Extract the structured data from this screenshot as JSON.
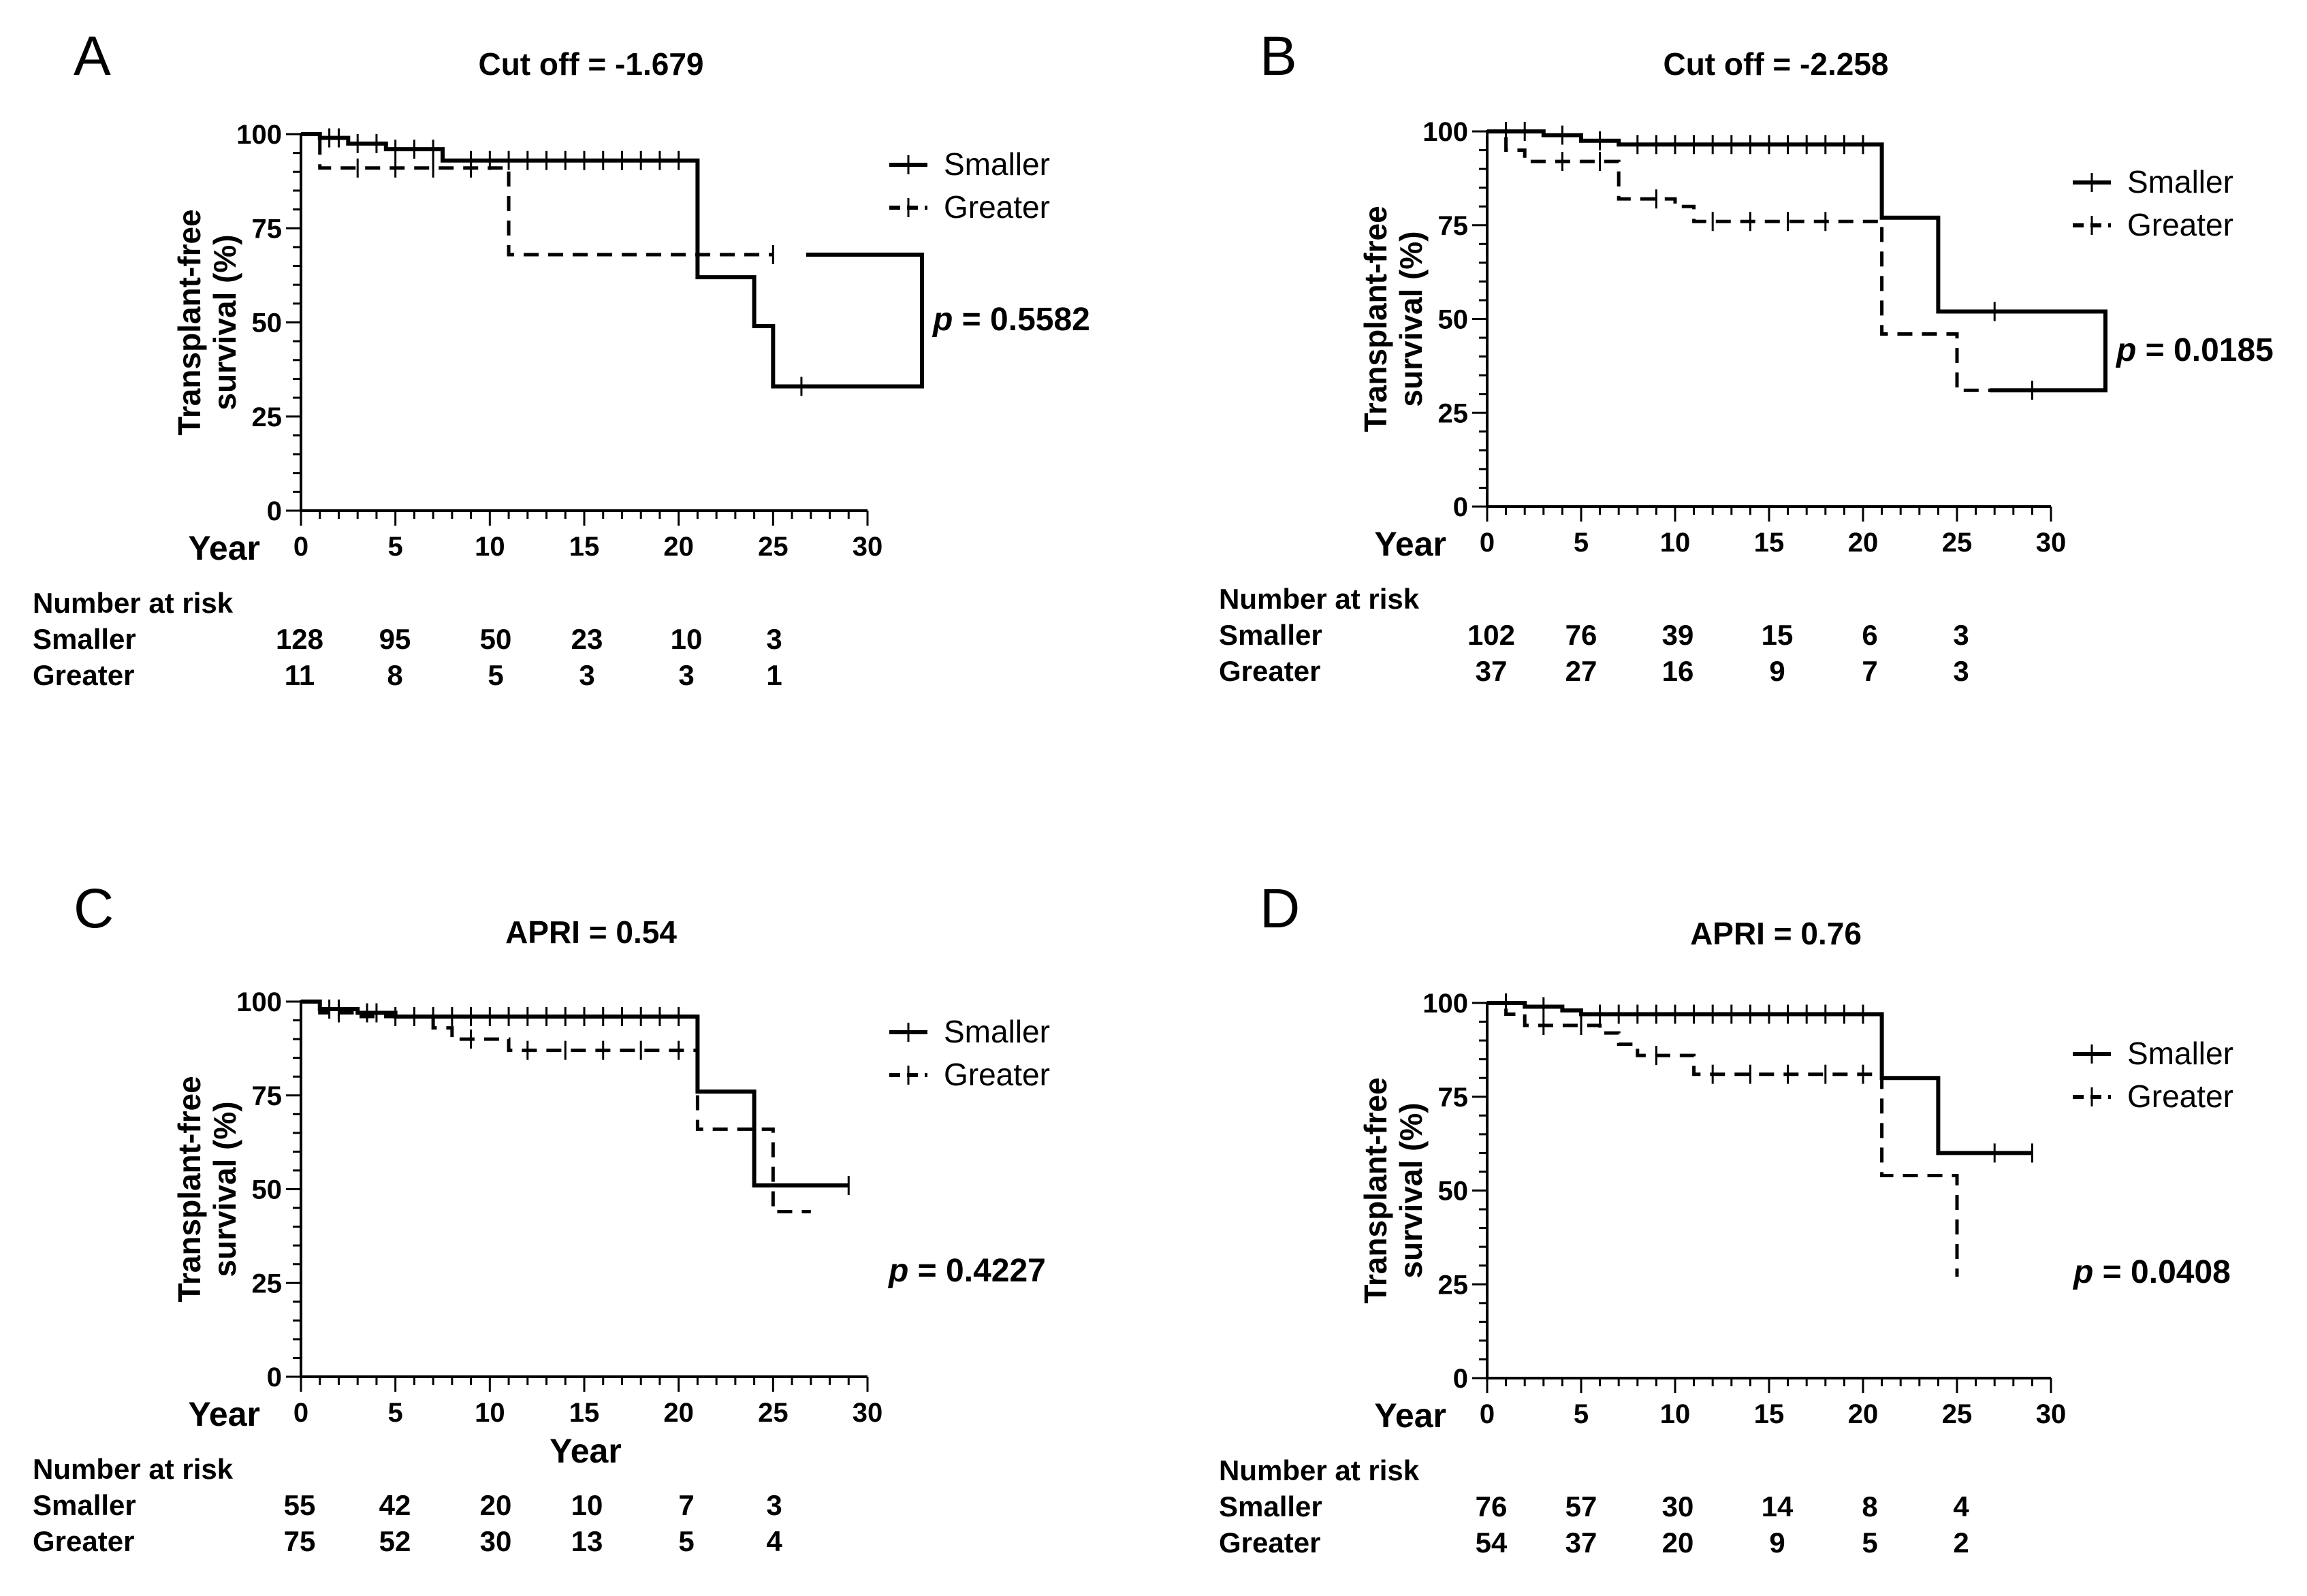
{
  "chart_data": [
    {
      "type": "line",
      "panel": "A",
      "title": "Cut off = -1.679",
      "xlabel": "Year",
      "ylabel": "Transplant-free survival (%)",
      "ylabel_lines": [
        "Transplant-free",
        "survival (%)"
      ],
      "xlim": [
        0,
        30
      ],
      "ylim": [
        0,
        100
      ],
      "xticks": [
        0,
        5,
        10,
        15,
        20,
        25,
        30
      ],
      "yticks": [
        0,
        25,
        50,
        75,
        100
      ],
      "p_prefix": "p",
      "p_value": " = 0.5582",
      "series": [
        {
          "name": "Smaller",
          "style": "solid",
          "steps": [
            [
              0,
              100
            ],
            [
              1,
              99
            ],
            [
              2.5,
              97.5
            ],
            [
              4.5,
              96
            ],
            [
              7.5,
              93
            ],
            [
              21,
              62
            ],
            [
              24,
              49
            ],
            [
              25,
              33
            ],
            [
              29,
              33
            ]
          ],
          "censors": [
            1.5,
            2,
            3,
            4,
            5,
            6,
            7,
            9,
            10,
            11,
            12,
            13,
            14,
            15,
            16,
            17,
            18,
            19,
            20,
            26.5
          ]
        },
        {
          "name": "Greater",
          "style": "dashed",
          "steps": [
            [
              0,
              100
            ],
            [
              1,
              91
            ],
            [
              11,
              68
            ],
            [
              25,
              68
            ]
          ],
          "censors": [
            3,
            5,
            7,
            9,
            25
          ]
        }
      ],
      "risk_table": {
        "header": "Number at risk",
        "times": [
          0,
          5,
          10,
          15,
          20,
          25
        ],
        "rows": [
          {
            "label": "Smaller",
            "values": [
              "128",
              "95",
              "50",
              "23",
              "10",
              "3"
            ]
          },
          {
            "label": "Greater",
            "values": [
              "11",
              "8",
              "5",
              "3",
              "3",
              "1"
            ]
          }
        ]
      }
    },
    {
      "type": "line",
      "panel": "B",
      "title": "Cut off = -2.258",
      "xlabel": "Year",
      "ylabel": "Transplant-free survival (%)",
      "ylabel_lines": [
        "Transplant-free",
        "survival (%)"
      ],
      "xlim": [
        0,
        30
      ],
      "ylim": [
        0,
        100
      ],
      "xticks": [
        0,
        5,
        10,
        15,
        20,
        25,
        30
      ],
      "yticks": [
        0,
        25,
        50,
        75,
        100
      ],
      "p_prefix": "p",
      "p_value": " = 0.0185",
      "series": [
        {
          "name": "Smaller",
          "style": "solid",
          "steps": [
            [
              0,
              100
            ],
            [
              3,
              99
            ],
            [
              5,
              97.5
            ],
            [
              7,
              96.5
            ],
            [
              21,
              77
            ],
            [
              24,
              52
            ],
            [
              27,
              52
            ]
          ],
          "censors": [
            1,
            2,
            4,
            6,
            8,
            9,
            10,
            11,
            12,
            13,
            14,
            15,
            16,
            17,
            18,
            19,
            20,
            27
          ]
        },
        {
          "name": "Greater",
          "style": "dashed",
          "steps": [
            [
              0,
              100
            ],
            [
              1,
              95
            ],
            [
              2,
              92
            ],
            [
              7,
              82
            ],
            [
              10,
              80
            ],
            [
              11,
              76
            ],
            [
              21,
              46
            ],
            [
              24,
              46
            ],
            [
              25,
              31
            ],
            [
              29,
              31
            ]
          ],
          "censors": [
            4,
            6,
            9,
            12,
            14,
            16,
            18,
            29
          ]
        }
      ],
      "risk_table": {
        "header": "Number at risk",
        "times": [
          0,
          5,
          10,
          15,
          20,
          25
        ],
        "rows": [
          {
            "label": "Smaller",
            "values": [
              "102",
              "76",
              "39",
              "15",
              "6",
              "3"
            ]
          },
          {
            "label": "Greater",
            "values": [
              "37",
              "27",
              "16",
              "9",
              "7",
              "3"
            ]
          }
        ]
      }
    },
    {
      "type": "line",
      "panel": "C",
      "title": "APRI = 0.54",
      "xlabel": "Year",
      "ylabel": "Transplant-free survival (%)",
      "ylabel_lines": [
        "Transplant-free",
        "survival (%)"
      ],
      "xlim": [
        0,
        30
      ],
      "ylim": [
        0,
        100
      ],
      "xticks": [
        0,
        5,
        10,
        15,
        20,
        25,
        30
      ],
      "yticks": [
        0,
        25,
        50,
        75,
        100
      ],
      "p_prefix": "p",
      "p_value": " = 0.4227",
      "series": [
        {
          "name": "Smaller",
          "style": "solid",
          "steps": [
            [
              0,
              100
            ],
            [
              1,
              98
            ],
            [
              3,
              97
            ],
            [
              5,
              96
            ],
            [
              21,
              76
            ],
            [
              24,
              51
            ],
            [
              29,
              51
            ]
          ],
          "censors": [
            1.5,
            2,
            3.5,
            4,
            6,
            7,
            8,
            9,
            10,
            11,
            12,
            13,
            14,
            15,
            16,
            17,
            18,
            19,
            20,
            29
          ]
        },
        {
          "name": "Greater",
          "style": "dashed",
          "steps": [
            [
              0,
              100
            ],
            [
              1,
              97
            ],
            [
              3,
              96
            ],
            [
              7,
              93
            ],
            [
              8,
              90
            ],
            [
              11,
              87
            ],
            [
              21,
              66
            ],
            [
              25,
              44
            ],
            [
              27,
              44
            ]
          ],
          "censors": [
            2,
            5,
            9,
            12,
            14,
            16,
            18,
            20
          ]
        }
      ],
      "risk_table": {
        "header": "Number at risk",
        "times": [
          0,
          5,
          10,
          15,
          20,
          25
        ],
        "rows": [
          {
            "label": "Smaller",
            "values": [
              "55",
              "42",
              "20",
              "10",
              "7",
              "3"
            ]
          },
          {
            "label": "Greater",
            "values": [
              "75",
              "52",
              "30",
              "13",
              "5",
              "4"
            ]
          }
        ]
      }
    },
    {
      "type": "line",
      "panel": "D",
      "title": "APRI = 0.76",
      "xlabel": "Year",
      "ylabel": "Transplant-free survival (%)",
      "ylabel_lines": [
        "Transplant-free",
        "survival (%)"
      ],
      "xlim": [
        0,
        30
      ],
      "ylim": [
        0,
        100
      ],
      "xticks": [
        0,
        5,
        10,
        15,
        20,
        25,
        30
      ],
      "yticks": [
        0,
        25,
        50,
        75,
        100
      ],
      "p_prefix": "p",
      "p_value": " = 0.0408",
      "series": [
        {
          "name": "Smaller",
          "style": "solid",
          "steps": [
            [
              0,
              100
            ],
            [
              2,
              99
            ],
            [
              4,
              98
            ],
            [
              5,
              97
            ],
            [
              21,
              80
            ],
            [
              24,
              60
            ],
            [
              29,
              60
            ]
          ],
          "censors": [
            1,
            3,
            6,
            7,
            8,
            9,
            10,
            11,
            12,
            13,
            14,
            15,
            16,
            17,
            18,
            19,
            20,
            27,
            29
          ]
        },
        {
          "name": "Greater",
          "style": "dashed",
          "steps": [
            [
              0,
              100
            ],
            [
              1,
              97
            ],
            [
              2,
              94
            ],
            [
              6,
              92
            ],
            [
              7,
              89
            ],
            [
              8,
              86
            ],
            [
              11,
              81
            ],
            [
              21,
              54
            ],
            [
              25,
              27
            ]
          ],
          "censors": [
            3,
            5,
            9,
            12,
            14,
            16,
            18,
            20
          ]
        }
      ],
      "risk_table": {
        "header": "Number at risk",
        "times": [
          0,
          5,
          10,
          15,
          20,
          25
        ],
        "rows": [
          {
            "label": "Smaller",
            "values": [
              "76",
              "57",
              "30",
              "14",
              "8",
              "4"
            ]
          },
          {
            "label": "Greater",
            "values": [
              "54",
              "37",
              "20",
              "9",
              "5",
              "2"
            ]
          }
        ]
      }
    }
  ],
  "extra_year_label": "Year"
}
